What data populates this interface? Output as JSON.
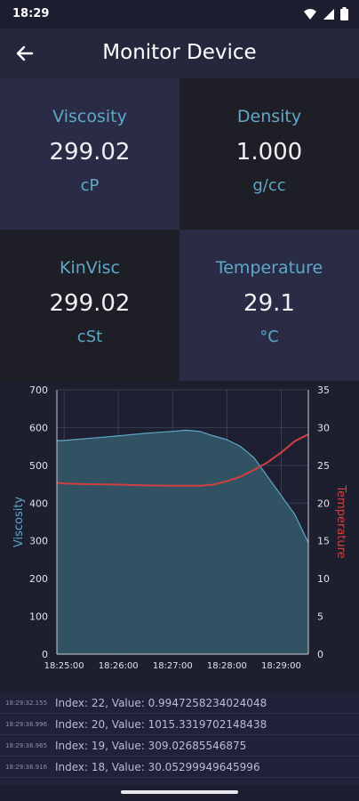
{
  "status": {
    "time": "18:29",
    "icons": [
      "wifi-icon",
      "signal-icon",
      "battery-icon"
    ]
  },
  "app_bar": {
    "title": "Monitor Device",
    "back_icon": "arrow-left-icon"
  },
  "tiles": [
    {
      "label": "Viscosity",
      "value": "299.02",
      "unit": "cP"
    },
    {
      "label": "Density",
      "value": "1.000",
      "unit": "g/cc"
    },
    {
      "label": "KinVisc",
      "value": "299.02",
      "unit": "cSt"
    },
    {
      "label": "Temperature",
      "value": "29.1",
      "unit": "°C"
    }
  ],
  "chart_data": {
    "type": "area",
    "x": [
      "18:24:52",
      "18:25:00",
      "18:25:30",
      "18:26:00",
      "18:26:30",
      "18:27:00",
      "18:27:15",
      "18:27:30",
      "18:27:45",
      "18:28:00",
      "18:28:15",
      "18:28:30",
      "18:28:45",
      "18:29:00",
      "18:29:15",
      "18:29:30"
    ],
    "x_ticks": [
      "18:25:00",
      "18:26:00",
      "18:27:00",
      "18:28:00",
      "18:29:00"
    ],
    "series": [
      {
        "axis": "left",
        "style": "area",
        "color": "#5fa8c8",
        "values": [
          565,
          566,
          572,
          578,
          585,
          590,
          593,
          590,
          578,
          568,
          550,
          520,
          470,
          420,
          370,
          295
        ]
      },
      {
        "axis": "right",
        "style": "line",
        "color": "#d04040",
        "values": [
          22.7,
          22.6,
          22.5,
          22.45,
          22.35,
          22.3,
          22.3,
          22.3,
          22.45,
          22.9,
          23.5,
          24.4,
          25.4,
          26.7,
          28.2,
          29.1
        ]
      }
    ],
    "ylabel": "Viscosity",
    "y2label": "Temperature",
    "ylim": [
      0,
      700
    ],
    "y_ticks": [
      0,
      100,
      200,
      300,
      400,
      500,
      600,
      700
    ],
    "y2lim": [
      0,
      35
    ],
    "y2_ticks": [
      0,
      5,
      10,
      15,
      20,
      25,
      30,
      35
    ],
    "grid": true,
    "colors": {
      "axis_left": "#5fa8c8",
      "axis_right": "#d04040",
      "fill": "#335566"
    }
  },
  "log": [
    {
      "time": "18:29:32.155",
      "text": "Index: 22, Value: 0.9947258234024048"
    },
    {
      "time": "18:29:38.996",
      "text": "Index: 20, Value: 1015.3319702148438"
    },
    {
      "time": "18:29:38.965",
      "text": "Index: 19, Value: 309.02685546875"
    },
    {
      "time": "18:29:38.916",
      "text": "Index: 18, Value: 30.05299949645996"
    }
  ]
}
